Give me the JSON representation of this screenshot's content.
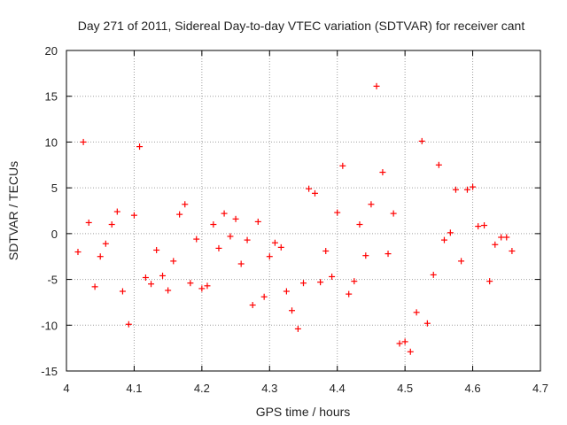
{
  "chart_data": {
    "type": "scatter",
    "title": "Day 271 of 2011, Sidereal Day-to-day VTEC variation (SDTVAR) for receiver cant",
    "xlabel": "GPS time / hours",
    "ylabel": "SDTVAR / TECUs",
    "xlim": [
      4.0,
      4.7
    ],
    "ylim": [
      -15,
      20
    ],
    "xticks": [
      "4",
      "4.1",
      "4.2",
      "4.3",
      "4.4",
      "4.5",
      "4.6",
      "4.7"
    ],
    "yticks": [
      "-15",
      "-10",
      "-5",
      "0",
      "5",
      "10",
      "15",
      "20"
    ],
    "grid": true,
    "marker": "+",
    "color": "#ff0000",
    "series": [
      {
        "name": "SDTVAR",
        "x": [
          4.017,
          4.025,
          4.033,
          4.042,
          4.05,
          4.058,
          4.067,
          4.075,
          4.083,
          4.092,
          4.1,
          4.108,
          4.117,
          4.125,
          4.133,
          4.142,
          4.15,
          4.158,
          4.167,
          4.175,
          4.183,
          4.192,
          4.2,
          4.208,
          4.217,
          4.225,
          4.233,
          4.242,
          4.25,
          4.258,
          4.267,
          4.275,
          4.283,
          4.292,
          4.3,
          4.308,
          4.317,
          4.325,
          4.333,
          4.342,
          4.35,
          4.358,
          4.367,
          4.375,
          4.383,
          4.392,
          4.4,
          4.408,
          4.417,
          4.425,
          4.433,
          4.442,
          4.45,
          4.458,
          4.467,
          4.475,
          4.483,
          4.492,
          4.5,
          4.508,
          4.517,
          4.525,
          4.533,
          4.542,
          4.55,
          4.558,
          4.567,
          4.575,
          4.583,
          4.592,
          4.6,
          4.608,
          4.617,
          4.625,
          4.633,
          4.642,
          4.65,
          4.658
        ],
        "y": [
          -2.0,
          10.0,
          1.2,
          -5.8,
          -2.5,
          -1.1,
          1.0,
          2.4,
          -6.3,
          -9.9,
          2.0,
          9.5,
          -4.8,
          -5.5,
          -1.8,
          -4.6,
          -6.2,
          -3.0,
          2.1,
          3.2,
          -5.4,
          -0.6,
          -6.0,
          -5.7,
          1.0,
          -1.6,
          2.2,
          -0.3,
          1.6,
          -3.3,
          -0.7,
          -7.8,
          1.3,
          -6.9,
          -2.5,
          -1.0,
          -1.5,
          -6.3,
          -8.4,
          -10.4,
          -5.4,
          4.9,
          4.4,
          -5.3,
          -1.9,
          -4.7,
          2.3,
          7.4,
          -6.6,
          -5.2,
          1.0,
          -2.4,
          3.2,
          16.1,
          6.7,
          -2.2,
          2.2,
          -12.0,
          -11.8,
          -12.9,
          -8.6,
          10.1,
          -9.8,
          -4.5,
          7.5,
          -0.7,
          0.1,
          4.8,
          -3.0,
          4.8,
          5.1,
          0.8,
          0.9,
          -5.2,
          -1.2,
          -0.4,
          -0.4,
          -1.9
        ]
      }
    ]
  }
}
